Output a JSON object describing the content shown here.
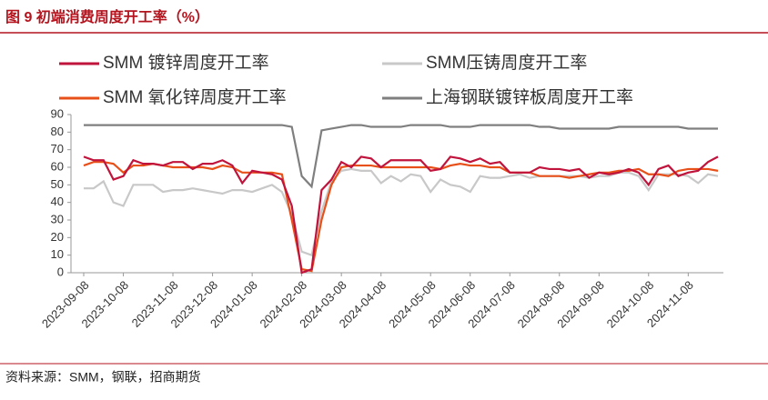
{
  "chart_data": {
    "type": "line",
    "title": "图 9 初端消费周度开工率（%）",
    "source": "资料来源：SMM，钢联，招商期货",
    "categories": [
      "2023-09-08",
      null,
      null,
      null,
      "2023-10-08",
      null,
      null,
      null,
      null,
      "2023-11-08",
      null,
      null,
      null,
      "2023-12-08",
      null,
      null,
      null,
      "2024-01-08",
      null,
      null,
      null,
      null,
      "2024-02-08",
      null,
      null,
      null,
      "2024-03-08",
      null,
      null,
      null,
      "2024-04-08",
      null,
      null,
      null,
      null,
      "2024-05-08",
      null,
      null,
      null,
      "2024-06-08",
      null,
      null,
      null,
      "2024-07-08",
      null,
      null,
      null,
      null,
      "2024-08-08",
      null,
      null,
      null,
      "2024-09-08",
      null,
      null,
      null,
      null,
      "2024-10-08",
      null,
      null,
      null,
      "2024-11-08",
      null,
      null,
      null
    ],
    "series": [
      {
        "name": "SMM 镀锌周度开工率",
        "color": "#c0143c",
        "values": [
          66,
          64,
          64,
          53,
          55,
          64,
          62,
          62,
          61,
          63,
          63,
          59,
          62,
          62,
          64,
          61,
          51,
          58,
          57,
          56,
          53,
          38,
          0,
          2,
          47,
          53,
          63,
          60,
          66,
          65,
          60,
          64,
          64,
          64,
          64,
          58,
          59,
          66,
          65,
          63,
          65,
          62,
          63,
          57,
          57,
          57,
          60,
          59,
          59,
          58,
          59,
          54,
          57,
          56,
          57,
          59,
          57,
          50,
          59,
          61,
          55,
          57,
          58,
          63,
          66
        ]
      },
      {
        "name": "SMM压铸周度开工率",
        "color": "#c8c8c8",
        "values": [
          48,
          48,
          52,
          40,
          38,
          50,
          50,
          50,
          46,
          47,
          47,
          48,
          47,
          46,
          45,
          47,
          47,
          46,
          48,
          50,
          46,
          33,
          12,
          10,
          35,
          52,
          58,
          59,
          58,
          58,
          51,
          55,
          52,
          56,
          55,
          46,
          53,
          50,
          49,
          46,
          55,
          54,
          54,
          55,
          56,
          54,
          55,
          55,
          55,
          55,
          55,
          54,
          55,
          55,
          57,
          57,
          55,
          47,
          56,
          56,
          56,
          55,
          51,
          56,
          55
        ]
      },
      {
        "name": "SMM 氧化锌周度开工率",
        "color": "#e8501a",
        "values": [
          61,
          63,
          63,
          62,
          57,
          61,
          61,
          62,
          61,
          60,
          60,
          60,
          60,
          59,
          61,
          60,
          57,
          57,
          57,
          57,
          56,
          30,
          2,
          1,
          30,
          50,
          60,
          61,
          61,
          61,
          60,
          60,
          60,
          60,
          60,
          60,
          59,
          61,
          62,
          61,
          61,
          60,
          60,
          57,
          57,
          57,
          55,
          55,
          55,
          54,
          55,
          56,
          57,
          57,
          58,
          58,
          59,
          56,
          56,
          55,
          58,
          59,
          59,
          59,
          58
        ]
      },
      {
        "name": "上海钢联镀锌板周度开工率",
        "color": "#7f7f7f",
        "values": [
          84,
          84,
          84,
          84,
          84,
          84,
          84,
          84,
          84,
          84,
          84,
          84,
          84,
          84,
          84,
          84,
          84,
          84,
          84,
          84,
          84,
          83,
          55,
          49,
          81,
          82,
          83,
          84,
          84,
          83,
          83,
          83,
          83,
          84,
          84,
          84,
          84,
          83,
          83,
          83,
          84,
          84,
          84,
          84,
          84,
          84,
          83,
          83,
          82,
          82,
          82,
          82,
          82,
          82,
          83,
          83,
          83,
          83,
          83,
          83,
          83,
          82,
          82,
          82,
          82
        ]
      }
    ],
    "ylim": [
      0,
      90
    ],
    "yticks": [
      0,
      10,
      20,
      30,
      40,
      50,
      60,
      70,
      80,
      90
    ]
  }
}
